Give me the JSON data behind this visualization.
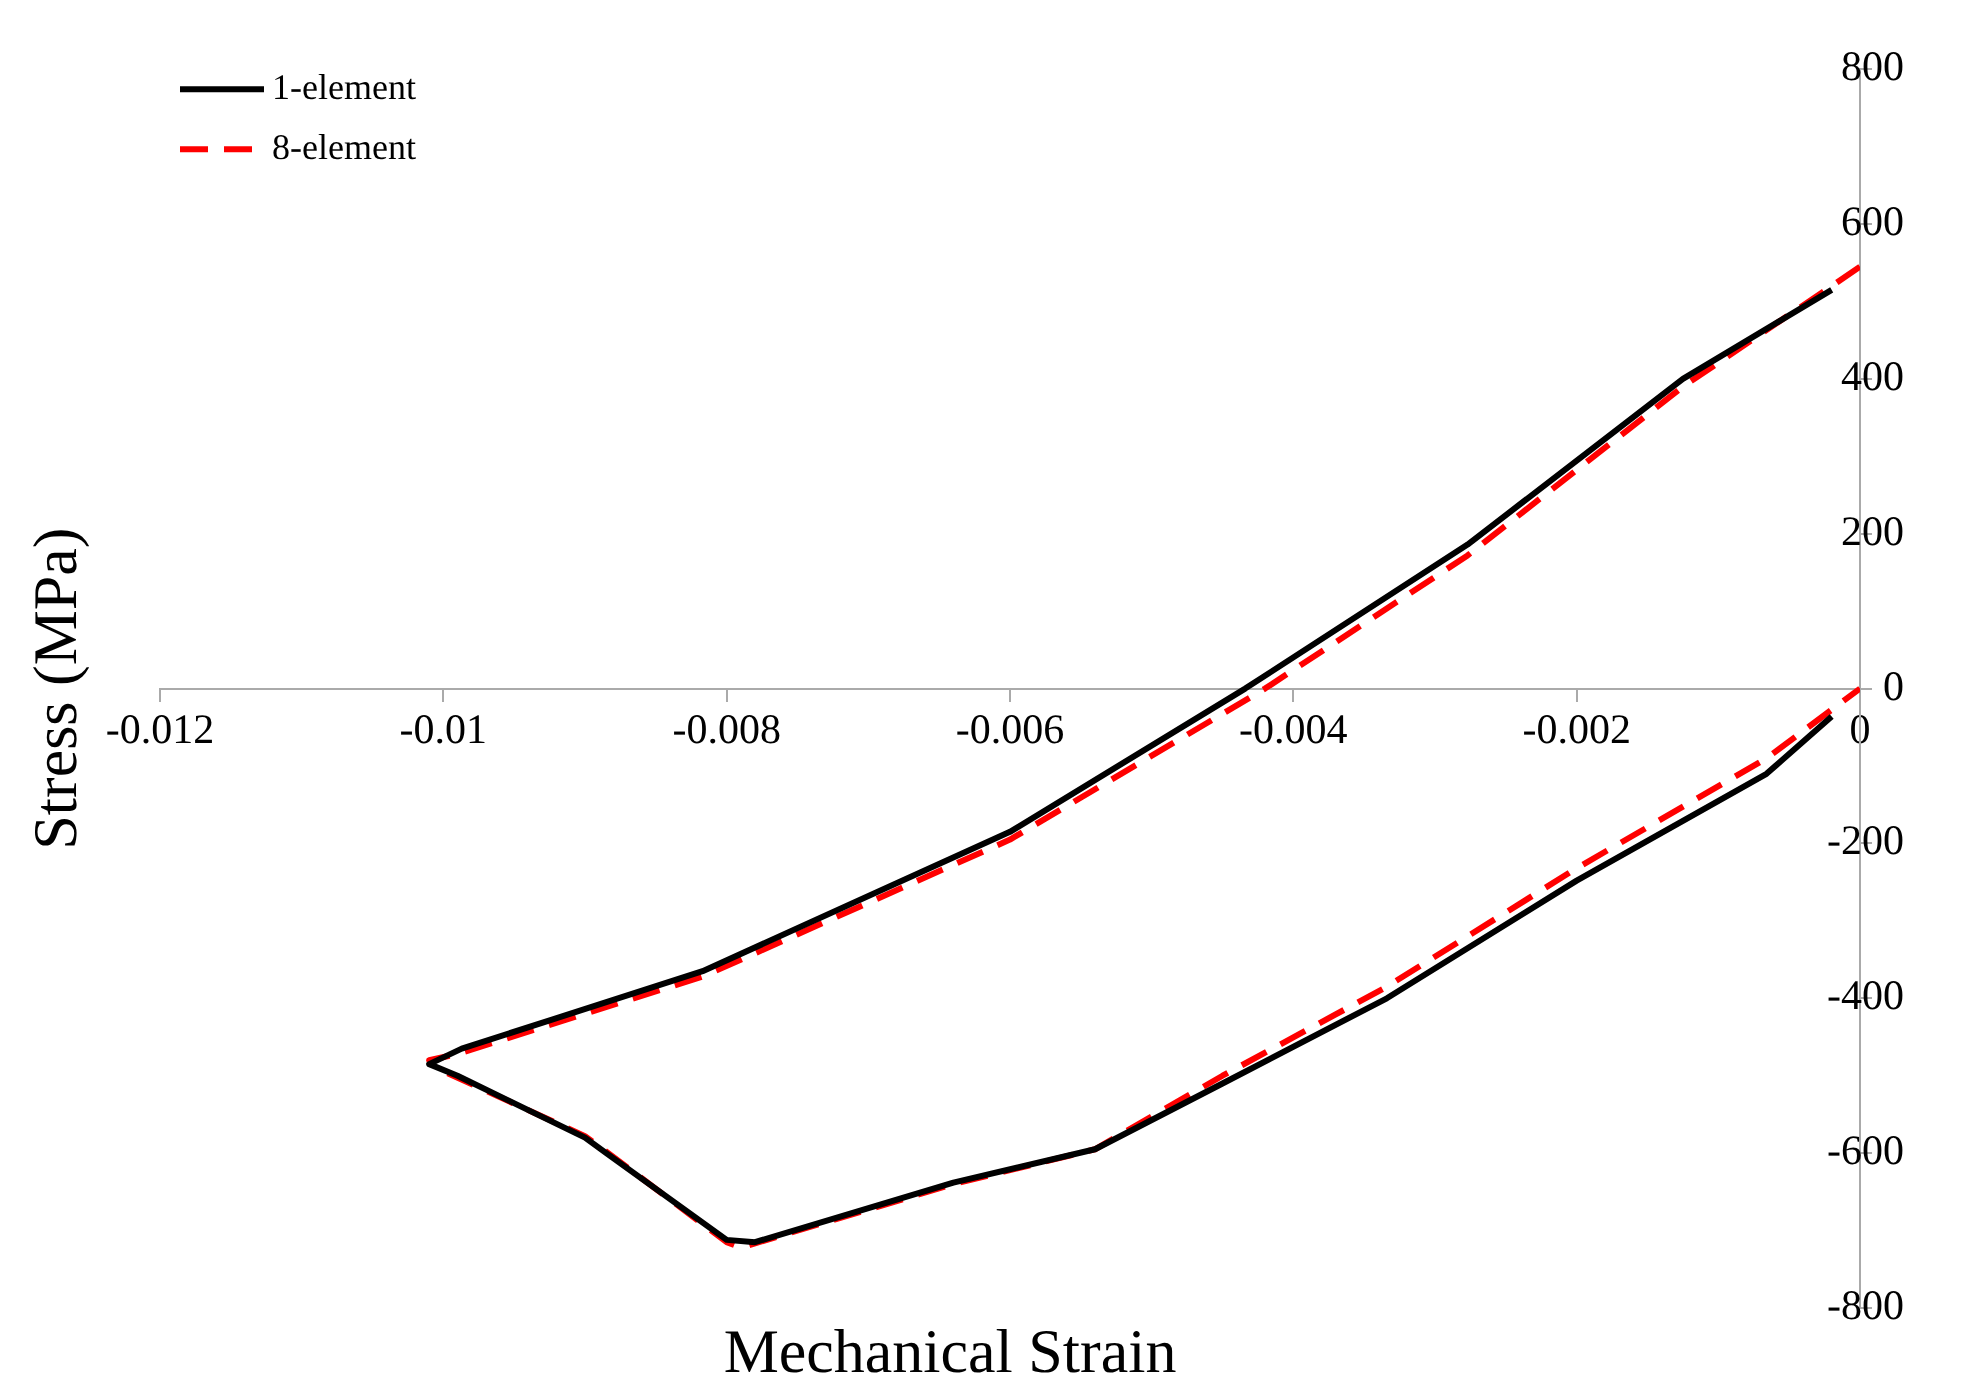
{
  "chart_data": {
    "type": "line",
    "xlabel": "Mechanical Strain",
    "ylabel": "Stress (MPa)",
    "xlim": [
      -0.012,
      0
    ],
    "xticks": [
      -0.012,
      -0.01,
      -0.008,
      -0.006,
      -0.004,
      -0.002,
      0
    ],
    "ylim": [
      -800,
      800
    ],
    "yticks": [
      -800,
      -600,
      -400,
      -200,
      0,
      200,
      400,
      600,
      800
    ],
    "grid": false,
    "legend": "top left",
    "marker": "none",
    "series": [
      {
        "name": "1-element",
        "color": "#000000",
        "line_style": "solid",
        "x": [
          -0.0002,
          -0.00125,
          -0.00277,
          -0.00434,
          -0.006,
          -0.00817,
          -0.00987,
          -0.0101,
          -0.0099,
          -0.009,
          -0.00885,
          -0.008,
          -0.0078,
          -0.0064,
          -0.0054,
          -0.0045,
          -0.00334,
          -0.002,
          -0.00066,
          -0.0002
        ],
        "values": [
          515,
          400,
          186,
          0,
          -185,
          -365,
          -465,
          -485,
          -500,
          -580,
          -600,
          -712,
          -715,
          -638,
          -595,
          -510,
          -400,
          -248,
          -110,
          -36
        ]
      },
      {
        "name": "8-element",
        "color": "#ff0000",
        "line_style": "dashed",
        "x": [
          0,
          -0.0002,
          -0.00125,
          -0.00277,
          -0.0042,
          -0.006,
          -0.00817,
          -0.0099,
          -0.0101,
          -0.01005,
          -0.009,
          -0.00885,
          -0.008,
          -0.0079,
          -0.0064,
          -0.0054,
          -0.0045,
          -0.00334,
          -0.002,
          -0.00066,
          0
        ],
        "values": [
          545,
          520,
          390,
          172,
          0,
          -195,
          -372,
          -472,
          -480,
          -490,
          -578,
          -598,
          -715,
          -722,
          -640,
          -595,
          -500,
          -385,
          -232,
          -90,
          0
        ]
      }
    ]
  }
}
